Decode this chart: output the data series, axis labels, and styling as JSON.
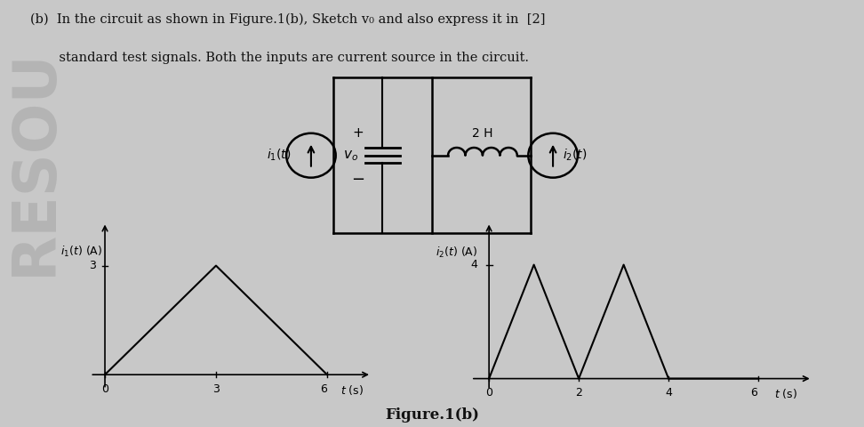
{
  "bg_color": "#c8c8c8",
  "text_color": "#111111",
  "header_line1": "(b)  In the circuit as shown in Figure.1(b), Sketch v₀ and also express it in  [2]",
  "header_line2": "       standard test signals. Both the inputs are current source in the circuit.",
  "figure_caption": "Figure.1(b)",
  "graph1": {
    "ylabel": "i₁(t) (A)",
    "xlabel": "t (s)",
    "ytick_val": 3,
    "xticks": [
      0,
      3,
      6
    ],
    "x_data": [
      0,
      3,
      6
    ],
    "y_data": [
      0,
      3,
      0
    ],
    "xlim": [
      -0.5,
      7.2
    ],
    "ylim": [
      -0.5,
      4.2
    ]
  },
  "graph2": {
    "ylabel": "i₂(t) (A)",
    "xlabel": "t (s)",
    "ytick_val": 4,
    "xticks": [
      0,
      2,
      4,
      6
    ],
    "x_data": [
      0,
      1,
      2,
      2,
      3,
      4,
      6
    ],
    "y_data": [
      0,
      4,
      0,
      0,
      4,
      0,
      0
    ],
    "xlim": [
      -0.5,
      7.2
    ],
    "ylim": [
      -0.5,
      5.5
    ]
  }
}
